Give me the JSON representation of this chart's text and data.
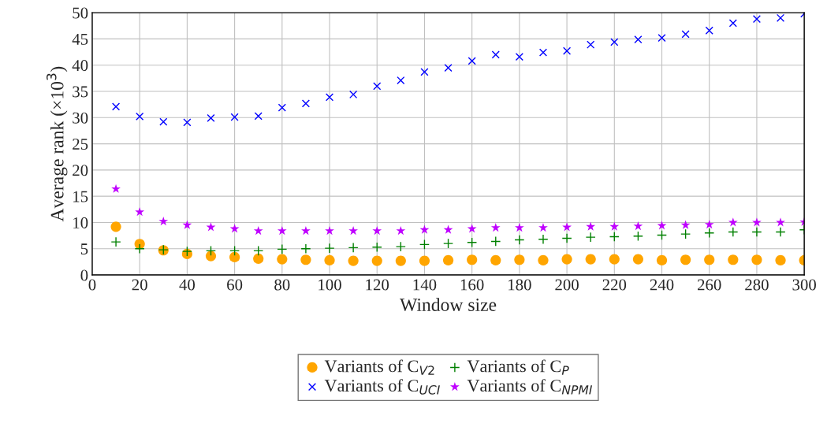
{
  "chart_data": {
    "type": "scatter",
    "xlabel": "Window size",
    "ylabel": "Average rank (×10$^{3}$)",
    "x": [
      10,
      20,
      30,
      40,
      50,
      60,
      70,
      80,
      90,
      100,
      110,
      120,
      130,
      140,
      150,
      160,
      170,
      180,
      190,
      200,
      210,
      220,
      230,
      240,
      250,
      260,
      270,
      280,
      290,
      300
    ],
    "series": [
      {
        "name": "Variants of C$_{V2}$",
        "color": "#ffa500",
        "marker": "circle",
        "values": [
          9.2,
          5.9,
          4.7,
          4.0,
          3.6,
          3.4,
          3.1,
          3.0,
          2.9,
          2.8,
          2.7,
          2.7,
          2.7,
          2.7,
          2.8,
          2.9,
          2.8,
          2.9,
          2.8,
          3.0,
          3.0,
          3.0,
          3.0,
          2.8,
          2.9,
          2.9,
          2.9,
          2.9,
          2.8,
          2.8
        ]
      },
      {
        "name": "Variants of C$_{P}$",
        "color": "#008000",
        "marker": "plus",
        "values": [
          6.3,
          5.0,
          4.8,
          4.5,
          4.6,
          4.6,
          4.6,
          4.9,
          5.0,
          5.1,
          5.2,
          5.3,
          5.4,
          5.8,
          6.0,
          6.2,
          6.4,
          6.7,
          6.8,
          7.0,
          7.2,
          7.3,
          7.4,
          7.6,
          7.8,
          8.0,
          8.2,
          8.2,
          8.2,
          8.6
        ]
      },
      {
        "name": "Variants of C$_{UCI}$",
        "color": "#0000ff",
        "marker": "cross",
        "values": [
          32.1,
          30.2,
          29.2,
          29.1,
          29.9,
          30.1,
          30.3,
          31.9,
          32.7,
          33.9,
          34.4,
          36.0,
          37.1,
          38.7,
          39.5,
          40.8,
          42.0,
          41.6,
          42.4,
          42.7,
          43.9,
          44.4,
          44.9,
          45.2,
          45.9,
          46.6,
          48.0,
          48.8,
          49.0,
          49.8
        ]
      },
      {
        "name": "Variants of C$_{NPMI}$",
        "color": "#bf00ff",
        "marker": "star",
        "values": [
          16.4,
          12.0,
          10.2,
          9.5,
          9.1,
          8.8,
          8.4,
          8.4,
          8.4,
          8.4,
          8.4,
          8.4,
          8.4,
          8.6,
          8.6,
          8.8,
          9.0,
          9.0,
          9.0,
          9.1,
          9.2,
          9.2,
          9.3,
          9.4,
          9.5,
          9.6,
          10.0,
          10.0,
          10.0,
          10.1
        ]
      }
    ],
    "xlim": [
      0,
      300
    ],
    "xticks": [
      0,
      20,
      40,
      60,
      80,
      100,
      120,
      140,
      160,
      180,
      200,
      220,
      240,
      260,
      280,
      300
    ],
    "ylim": [
      0,
      50
    ],
    "yticks": [
      0,
      5,
      10,
      15,
      20,
      25,
      30,
      35,
      40,
      45,
      50
    ],
    "grid": true,
    "legend": "bottom"
  }
}
